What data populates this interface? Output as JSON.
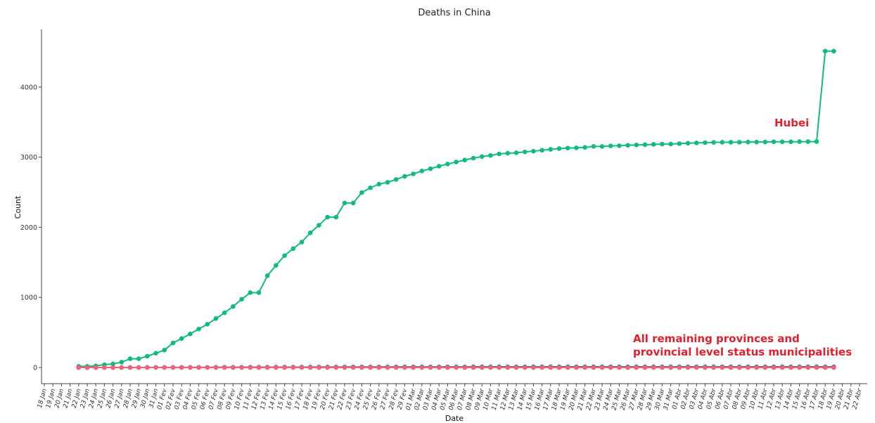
{
  "chart_data": {
    "type": "line",
    "title": "Deaths in China",
    "xlabel": "Date",
    "ylabel": "Count",
    "ylim": [
      -230,
      4820
    ],
    "yticks": [
      0,
      1000,
      2000,
      3000,
      4000
    ],
    "x_tick_labels": [
      "18 Jan",
      "19 Jan",
      "20 Jan",
      "21 Jan",
      "22 Jan",
      "23 Jan",
      "24 Jan",
      "25 Jan",
      "26 Jan",
      "27 Jan",
      "28 Jan",
      "29 Jan",
      "30 Jan",
      "31 Jan",
      "01 Fev",
      "02 Fev",
      "03 Fev",
      "04 Fev",
      "05 Fev",
      "06 Fev",
      "07 Fev",
      "08 Fev",
      "09 Fev",
      "10 Fev",
      "11 Fev",
      "12 Fev",
      "13 Fev",
      "14 Fev",
      "15 Fev",
      "16 Fev",
      "17 Fev",
      "18 Fev",
      "19 Fev",
      "20 Fev",
      "21 Fev",
      "22 Fev",
      "23 Fev",
      "24 Fev",
      "25 Fev",
      "26 Fev",
      "27 Fev",
      "28 Fev",
      "29 Fev",
      "01 Mar",
      "02 Mar",
      "03 Mar",
      "04 Mar",
      "05 Mar",
      "06 Mar",
      "07 Mar",
      "08 Mar",
      "09 Mar",
      "10 Mar",
      "11 Mar",
      "12 Mar",
      "13 Mar",
      "14 Mar",
      "15 Mar",
      "16 Mar",
      "17 Mar",
      "18 Mar",
      "19 Mar",
      "20 Mar",
      "21 Mar",
      "22 Mar",
      "23 Mar",
      "24 Mar",
      "25 Mar",
      "26 Mar",
      "27 Mar",
      "28 Mar",
      "29 Mar",
      "30 Mar",
      "31 Mar",
      "01 Abr",
      "02 Abr",
      "03 Abr",
      "04 Abr",
      "05 Abr",
      "06 Abr",
      "07 Abr",
      "08 Abr",
      "09 Abr",
      "10 Abr",
      "11 Abr",
      "12 Abr",
      "13 Abr",
      "14 Abr",
      "15 Abr",
      "16 Abr",
      "17 Abr",
      "18 Abr",
      "19 Abr",
      "20 Abr",
      "21 Abr",
      "22 Abr"
    ],
    "x_first_date": "22 Jan",
    "x_last_date": "18 Abr",
    "series": [
      {
        "color": "#12bb7a",
        "values": [
          17,
          17,
          24,
          40,
          52,
          76,
          125,
          125,
          162,
          204,
          249,
          350,
          414,
          479,
          549,
          618,
          699,
          780,
          871,
          974,
          1068,
          1068,
          1310,
          1457,
          1596,
          1696,
          1789,
          1921,
          2029,
          2144,
          2144,
          2346,
          2346,
          2495,
          2563,
          2615,
          2641,
          2682,
          2727,
          2761,
          2803,
          2835,
          2871,
          2902,
          2931,
          2959,
          2986,
          3008,
          3024,
          3046,
          3056,
          3062,
          3075,
          3085,
          3099,
          3111,
          3122,
          3130,
          3133,
          3139,
          3153,
          3153,
          3160,
          3163,
          3169,
          3174,
          3177,
          3182,
          3186,
          3187,
          3193,
          3199,
          3203,
          3207,
          3210,
          3212,
          3212,
          3213,
          3215,
          3215,
          3216,
          3219,
          3219,
          3219,
          3221,
          3221,
          3222,
          4512,
          4512
        ]
      },
      {
        "color": "#3a7a6a",
        "values": [
          0,
          0,
          0,
          0,
          1,
          1,
          1,
          1,
          2,
          2,
          2,
          2,
          3,
          3,
          3,
          3,
          4,
          4,
          4,
          4,
          5,
          5,
          5,
          6,
          6,
          6,
          6,
          7,
          7,
          7,
          7,
          8,
          8,
          8,
          8,
          8,
          9,
          9,
          9,
          9,
          9,
          9,
          9,
          9,
          9,
          9,
          10,
          10,
          10,
          10,
          10,
          10,
          10,
          10,
          10,
          10,
          10,
          10,
          10,
          10,
          10,
          10,
          10,
          10,
          10,
          10,
          10,
          10,
          10,
          10,
          10,
          10,
          10,
          10,
          10,
          10,
          10,
          10,
          10,
          10,
          10,
          10,
          10,
          10,
          10,
          10,
          10,
          10,
          10
        ]
      },
      {
        "color": "#f0617a",
        "values": [
          0,
          0,
          0,
          0,
          0,
          0,
          0,
          0,
          0,
          0,
          0,
          0,
          0,
          0,
          0,
          0,
          0,
          0,
          0,
          0,
          0,
          0,
          0,
          0,
          0,
          0,
          0,
          0,
          0,
          0,
          0,
          0,
          0,
          0,
          0,
          0,
          0,
          0,
          0,
          0,
          0,
          0,
          0,
          0,
          0,
          0,
          0,
          0,
          0,
          0,
          0,
          0,
          0,
          0,
          0,
          0,
          0,
          0,
          0,
          0,
          0,
          0,
          0,
          0,
          0,
          0,
          0,
          0,
          0,
          0,
          0,
          0,
          0,
          0,
          0,
          0,
          0,
          0,
          0,
          0,
          0,
          0,
          0,
          0,
          0,
          0,
          0,
          0,
          0
        ]
      }
    ],
    "annotations": [
      {
        "text": "Hubei",
        "color": "#e2202c"
      },
      {
        "text": "All remaining provinces and",
        "color": "#e2202c"
      },
      {
        "text": "provincial level status municipalities",
        "color": "#e2202c"
      }
    ],
    "grid": false,
    "legend": "none"
  }
}
